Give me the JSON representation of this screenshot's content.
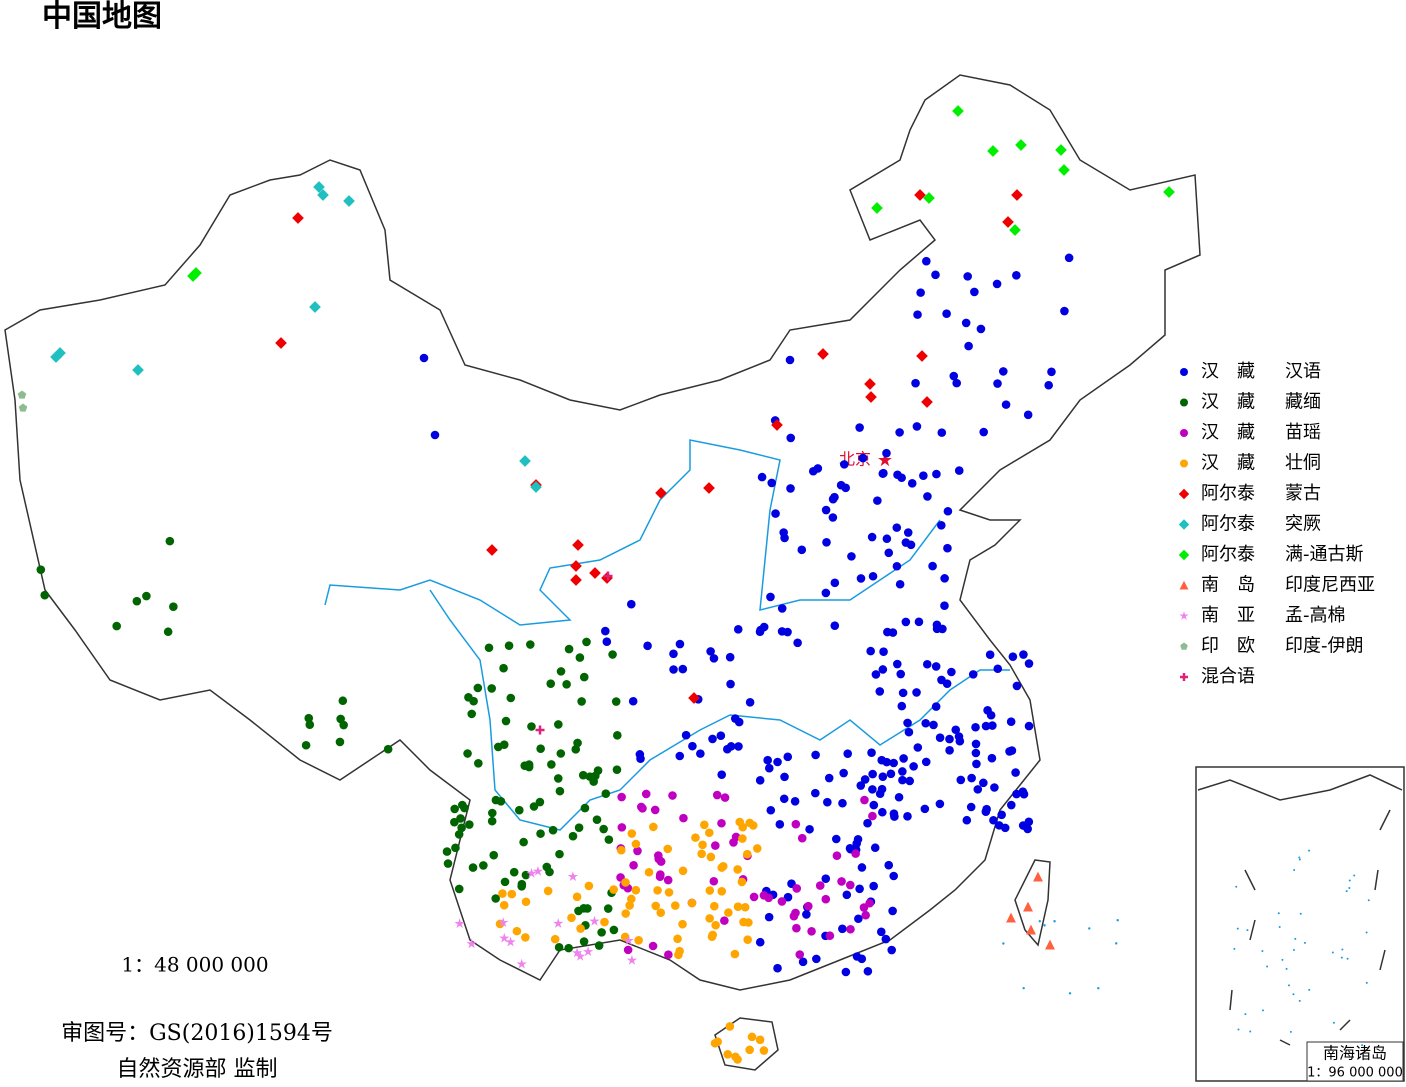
{
  "header": {
    "title": "中国地图"
  },
  "map": {
    "capital": "北京",
    "scale": "1：48 000 000",
    "approval": "审图号：GS(2016)1594号",
    "publisher": "自然资源部 监制"
  },
  "legend": [
    {
      "family": "汉　藏",
      "branch": "汉语",
      "color": "#0000e0",
      "marker": "circle"
    },
    {
      "family": "汉　藏",
      "branch": "藏缅",
      "color": "#006400",
      "marker": "circle"
    },
    {
      "family": "汉　藏",
      "branch": "苗瑶",
      "color": "#c000c0",
      "marker": "circle"
    },
    {
      "family": "汉　藏",
      "branch": "壮侗",
      "color": "#ffa500",
      "marker": "circle"
    },
    {
      "family": "阿尔泰",
      "branch": "蒙古",
      "color": "#ee0000",
      "marker": "diamond"
    },
    {
      "family": "阿尔泰",
      "branch": "突厥",
      "color": "#20c0c0",
      "marker": "diamond"
    },
    {
      "family": "阿尔泰",
      "branch": "满-通古斯",
      "color": "#00ee00",
      "marker": "diamond"
    },
    {
      "family": "南　岛",
      "branch": "印度尼西亚",
      "color": "#ff6040",
      "marker": "triangle"
    },
    {
      "family": "南　亚",
      "branch": "孟-高棉",
      "color": "#ee82ee",
      "marker": "star"
    },
    {
      "family": "印　欧",
      "branch": "印度-伊朗",
      "color": "#8fbc8f",
      "marker": "pentagon"
    },
    {
      "family": "混合语",
      "color": "#e0207a",
      "marker": "plus"
    }
  ],
  "inset": {
    "title": "南海诸岛",
    "scale": "1：96 000 000"
  }
}
